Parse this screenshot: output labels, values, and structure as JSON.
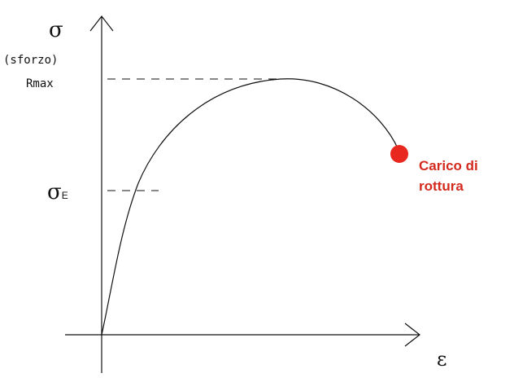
{
  "y_axis": {
    "symbol": "σ",
    "caption": "(sforzo)"
  },
  "x_axis": {
    "symbol": "ε"
  },
  "levels": {
    "rmax_label": "Rmax",
    "elastic_symbol": "σ",
    "elastic_subscript": "E"
  },
  "rupture": {
    "line1": "Carico di",
    "line2": "rottura",
    "color": "#e8281e"
  }
}
